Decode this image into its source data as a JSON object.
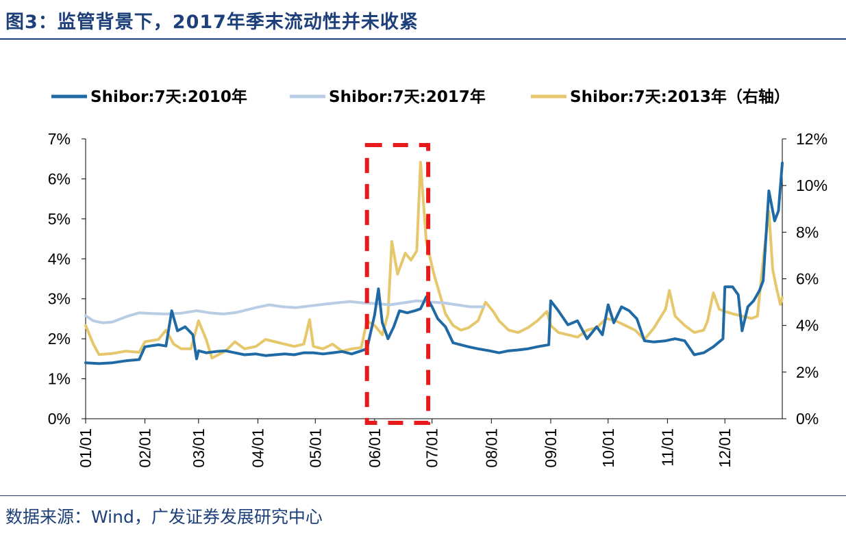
{
  "title": "图3：监管背景下，2017年季末流动性并未收紧",
  "source": "数据来源：Wind，广发证券发展研究中心",
  "colors": {
    "s2010": "#1f6aa5",
    "s2017": "#b8cce4",
    "s2013": "#e6c76b",
    "highlight": "#e8191b"
  },
  "chart_data": {
    "type": "line",
    "x_ticks": [
      "01/01",
      "02/01",
      "03/01",
      "04/01",
      "05/01",
      "06/01",
      "07/01",
      "08/01",
      "09/01",
      "10/01",
      "11/01",
      "12/01"
    ],
    "y_left": {
      "ylim": [
        0,
        7
      ],
      "ticks": [
        "0%",
        "1%",
        "2%",
        "3%",
        "4%",
        "5%",
        "6%",
        "7%"
      ]
    },
    "y_right": {
      "ylim": [
        0,
        12
      ],
      "ticks": [
        "0%",
        "2%",
        "4%",
        "6%",
        "8%",
        "10%",
        "12%"
      ]
    },
    "legend_position": "top",
    "series": [
      {
        "name": "Shibor:7天:2010年",
        "axis": "left",
        "points": [
          [
            "01/01",
            1.4
          ],
          [
            "01/08",
            1.38
          ],
          [
            "01/15",
            1.4
          ],
          [
            "01/22",
            1.45
          ],
          [
            "01/29",
            1.48
          ],
          [
            "02/01",
            1.8
          ],
          [
            "02/08",
            1.85
          ],
          [
            "02/12",
            1.82
          ],
          [
            "02/15",
            2.7
          ],
          [
            "02/18",
            2.2
          ],
          [
            "02/22",
            2.3
          ],
          [
            "02/26",
            2.1
          ],
          [
            "02/28",
            1.5
          ],
          [
            "03/01",
            1.7
          ],
          [
            "03/05",
            1.65
          ],
          [
            "03/10",
            1.68
          ],
          [
            "03/15",
            1.7
          ],
          [
            "03/20",
            1.65
          ],
          [
            "03/25",
            1.6
          ],
          [
            "03/31",
            1.62
          ],
          [
            "04/05",
            1.58
          ],
          [
            "04/10",
            1.6
          ],
          [
            "04/15",
            1.62
          ],
          [
            "04/20",
            1.6
          ],
          [
            "04/25",
            1.65
          ],
          [
            "04/30",
            1.65
          ],
          [
            "05/05",
            1.62
          ],
          [
            "05/10",
            1.65
          ],
          [
            "05/15",
            1.68
          ],
          [
            "05/20",
            1.62
          ],
          [
            "05/25",
            1.7
          ],
          [
            "05/28",
            1.75
          ],
          [
            "06/01",
            2.6
          ],
          [
            "06/03",
            3.25
          ],
          [
            "06/05",
            2.4
          ],
          [
            "06/08",
            2.0
          ],
          [
            "06/11",
            2.3
          ],
          [
            "06/14",
            2.7
          ],
          [
            "06/18",
            2.65
          ],
          [
            "06/22",
            2.7
          ],
          [
            "06/25",
            2.75
          ],
          [
            "06/28",
            3.05
          ],
          [
            "07/01",
            2.8
          ],
          [
            "07/04",
            2.5
          ],
          [
            "07/08",
            2.3
          ],
          [
            "07/12",
            1.9
          ],
          [
            "07/16",
            1.85
          ],
          [
            "07/20",
            1.8
          ],
          [
            "07/25",
            1.75
          ],
          [
            "07/31",
            1.7
          ],
          [
            "08/05",
            1.65
          ],
          [
            "08/10",
            1.7
          ],
          [
            "08/15",
            1.72
          ],
          [
            "08/20",
            1.75
          ],
          [
            "08/25",
            1.8
          ],
          [
            "08/31",
            1.85
          ],
          [
            "09/01",
            2.95
          ],
          [
            "09/05",
            2.7
          ],
          [
            "09/10",
            2.35
          ],
          [
            "09/15",
            2.45
          ],
          [
            "09/20",
            2.0
          ],
          [
            "09/25",
            2.3
          ],
          [
            "09/28",
            2.1
          ],
          [
            "10/01",
            2.85
          ],
          [
            "10/04",
            2.4
          ],
          [
            "10/08",
            2.8
          ],
          [
            "10/12",
            2.7
          ],
          [
            "10/16",
            2.5
          ],
          [
            "10/20",
            1.95
          ],
          [
            "10/25",
            1.92
          ],
          [
            "10/31",
            1.95
          ],
          [
            "11/05",
            2.0
          ],
          [
            "11/10",
            1.95
          ],
          [
            "11/15",
            1.6
          ],
          [
            "11/20",
            1.65
          ],
          [
            "11/25",
            1.8
          ],
          [
            "11/30",
            2.0
          ],
          [
            "12/01",
            3.3
          ],
          [
            "12/05",
            3.3
          ],
          [
            "12/08",
            3.1
          ],
          [
            "12/10",
            2.2
          ],
          [
            "12/13",
            2.8
          ],
          [
            "12/16",
            2.95
          ],
          [
            "12/19",
            3.2
          ],
          [
            "12/21",
            3.45
          ],
          [
            "12/24",
            5.7
          ],
          [
            "12/27",
            4.95
          ],
          [
            "12/29",
            5.2
          ],
          [
            "12/31",
            6.4
          ]
        ]
      },
      {
        "name": "Shibor:7天:2017年",
        "axis": "left",
        "points": [
          [
            "01/01",
            2.58
          ],
          [
            "01/05",
            2.45
          ],
          [
            "01/10",
            2.4
          ],
          [
            "01/15",
            2.42
          ],
          [
            "01/22",
            2.55
          ],
          [
            "01/29",
            2.65
          ],
          [
            "02/05",
            2.63
          ],
          [
            "02/12",
            2.62
          ],
          [
            "02/20",
            2.64
          ],
          [
            "02/28",
            2.7
          ],
          [
            "03/07",
            2.65
          ],
          [
            "03/14",
            2.62
          ],
          [
            "03/21",
            2.66
          ],
          [
            "03/31",
            2.78
          ],
          [
            "04/07",
            2.85
          ],
          [
            "04/14",
            2.8
          ],
          [
            "04/21",
            2.78
          ],
          [
            "04/28",
            2.82
          ],
          [
            "05/05",
            2.86
          ],
          [
            "05/12",
            2.9
          ],
          [
            "05/19",
            2.93
          ],
          [
            "05/26",
            2.9
          ],
          [
            "06/02",
            2.88
          ],
          [
            "06/09",
            2.85
          ],
          [
            "06/16",
            2.9
          ],
          [
            "06/23",
            2.95
          ],
          [
            "06/30",
            2.92
          ],
          [
            "07/07",
            2.9
          ],
          [
            "07/14",
            2.85
          ],
          [
            "07/21",
            2.8
          ],
          [
            "07/28",
            2.8
          ]
        ]
      },
      {
        "name": "Shibor:7天:2013年（右轴）",
        "axis": "right",
        "points": [
          [
            "01/01",
            4.0
          ],
          [
            "01/05",
            3.2
          ],
          [
            "01/08",
            2.75
          ],
          [
            "01/15",
            2.8
          ],
          [
            "01/22",
            2.9
          ],
          [
            "01/29",
            2.85
          ],
          [
            "02/01",
            3.3
          ],
          [
            "02/08",
            3.4
          ],
          [
            "02/12",
            3.8
          ],
          [
            "02/16",
            3.2
          ],
          [
            "02/20",
            3.0
          ],
          [
            "02/25",
            3.0
          ],
          [
            "03/01",
            4.2
          ],
          [
            "03/05",
            3.4
          ],
          [
            "03/08",
            2.6
          ],
          [
            "03/15",
            2.9
          ],
          [
            "03/20",
            3.3
          ],
          [
            "03/25",
            3.0
          ],
          [
            "03/31",
            3.1
          ],
          [
            "04/05",
            3.4
          ],
          [
            "04/10",
            3.3
          ],
          [
            "04/15",
            3.2
          ],
          [
            "04/20",
            3.1
          ],
          [
            "04/25",
            3.2
          ],
          [
            "04/28",
            4.25
          ],
          [
            "04/30",
            3.1
          ],
          [
            "05/05",
            3.0
          ],
          [
            "05/10",
            3.2
          ],
          [
            "05/15",
            2.9
          ],
          [
            "05/20",
            3.0
          ],
          [
            "05/25",
            3.05
          ],
          [
            "05/28",
            4.2
          ],
          [
            "06/01",
            4.0
          ],
          [
            "06/05",
            3.6
          ],
          [
            "06/08",
            4.5
          ],
          [
            "06/10",
            7.6
          ],
          [
            "06/13",
            6.2
          ],
          [
            "06/17",
            7.1
          ],
          [
            "06/20",
            6.8
          ],
          [
            "06/23",
            7.2
          ],
          [
            "06/25",
            11.0
          ],
          [
            "06/28",
            7.6
          ],
          [
            "07/02",
            6.2
          ],
          [
            "07/08",
            4.5
          ],
          [
            "07/12",
            4.0
          ],
          [
            "07/16",
            3.8
          ],
          [
            "07/20",
            3.9
          ],
          [
            "07/25",
            4.2
          ],
          [
            "07/29",
            5.0
          ],
          [
            "08/02",
            4.6
          ],
          [
            "08/05",
            4.2
          ],
          [
            "08/10",
            3.8
          ],
          [
            "08/15",
            3.7
          ],
          [
            "08/20",
            3.9
          ],
          [
            "08/25",
            4.2
          ],
          [
            "08/30",
            4.6
          ],
          [
            "09/01",
            4.0
          ],
          [
            "09/05",
            3.7
          ],
          [
            "09/10",
            3.6
          ],
          [
            "09/15",
            3.5
          ],
          [
            "09/20",
            3.8
          ],
          [
            "09/25",
            3.9
          ],
          [
            "09/30",
            4.3
          ],
          [
            "10/05",
            4.2
          ],
          [
            "10/10",
            4.0
          ],
          [
            "10/15",
            3.8
          ],
          [
            "10/20",
            3.4
          ],
          [
            "10/25",
            3.9
          ],
          [
            "10/31",
            4.7
          ],
          [
            "11/02",
            5.5
          ],
          [
            "11/05",
            4.4
          ],
          [
            "11/10",
            4.0
          ],
          [
            "11/15",
            3.7
          ],
          [
            "11/20",
            3.8
          ],
          [
            "11/22",
            4.2
          ],
          [
            "11/25",
            5.4
          ],
          [
            "11/28",
            4.7
          ],
          [
            "12/01",
            4.6
          ],
          [
            "12/05",
            4.5
          ],
          [
            "12/10",
            4.4
          ],
          [
            "12/15",
            4.3
          ],
          [
            "12/18",
            4.4
          ],
          [
            "12/21",
            6.8
          ],
          [
            "12/24",
            8.9
          ],
          [
            "12/26",
            6.4
          ],
          [
            "12/28",
            5.6
          ],
          [
            "12/30",
            4.9
          ],
          [
            "12/31",
            5.2
          ]
        ]
      }
    ],
    "highlight": {
      "style": "dashed-rectangle",
      "from": "05/28",
      "to": "06/29"
    }
  }
}
